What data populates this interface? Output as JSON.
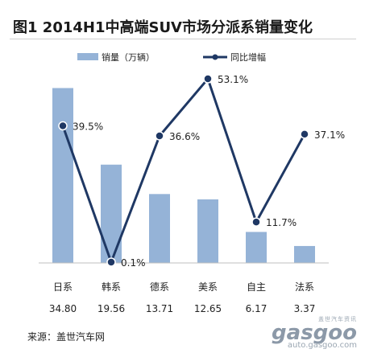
{
  "chart_data": {
    "type": "bar+line",
    "title": "图1  2014H1中高端SUV市场分派系销量变化",
    "categories": [
      "日系",
      "韩系",
      "德系",
      "美系",
      "自主",
      "法系"
    ],
    "series": [
      {
        "name": "销量（万辆）",
        "type": "bar",
        "color": "#95b3d7",
        "values": [
          34.8,
          19.56,
          13.71,
          12.65,
          6.17,
          3.37
        ],
        "value_labels": [
          "34.80",
          "19.56",
          "13.71",
          "12.65",
          "6.17",
          "3.37"
        ]
      },
      {
        "name": "同比增幅",
        "type": "line",
        "color": "#1f3864",
        "values": [
          39.5,
          0.1,
          36.6,
          53.1,
          11.7,
          37.1
        ],
        "value_labels": [
          "39.5%",
          "0.1%",
          "36.6%",
          "53.1%",
          "11.7%",
          "37.1%"
        ]
      }
    ],
    "legend_position": "top",
    "grid": false
  },
  "source": "来源：盖世汽车网",
  "watermark": {
    "chinese": "盖世汽车资讯",
    "brand": "gasgoo",
    "url": "auto.gasgoo.com"
  }
}
